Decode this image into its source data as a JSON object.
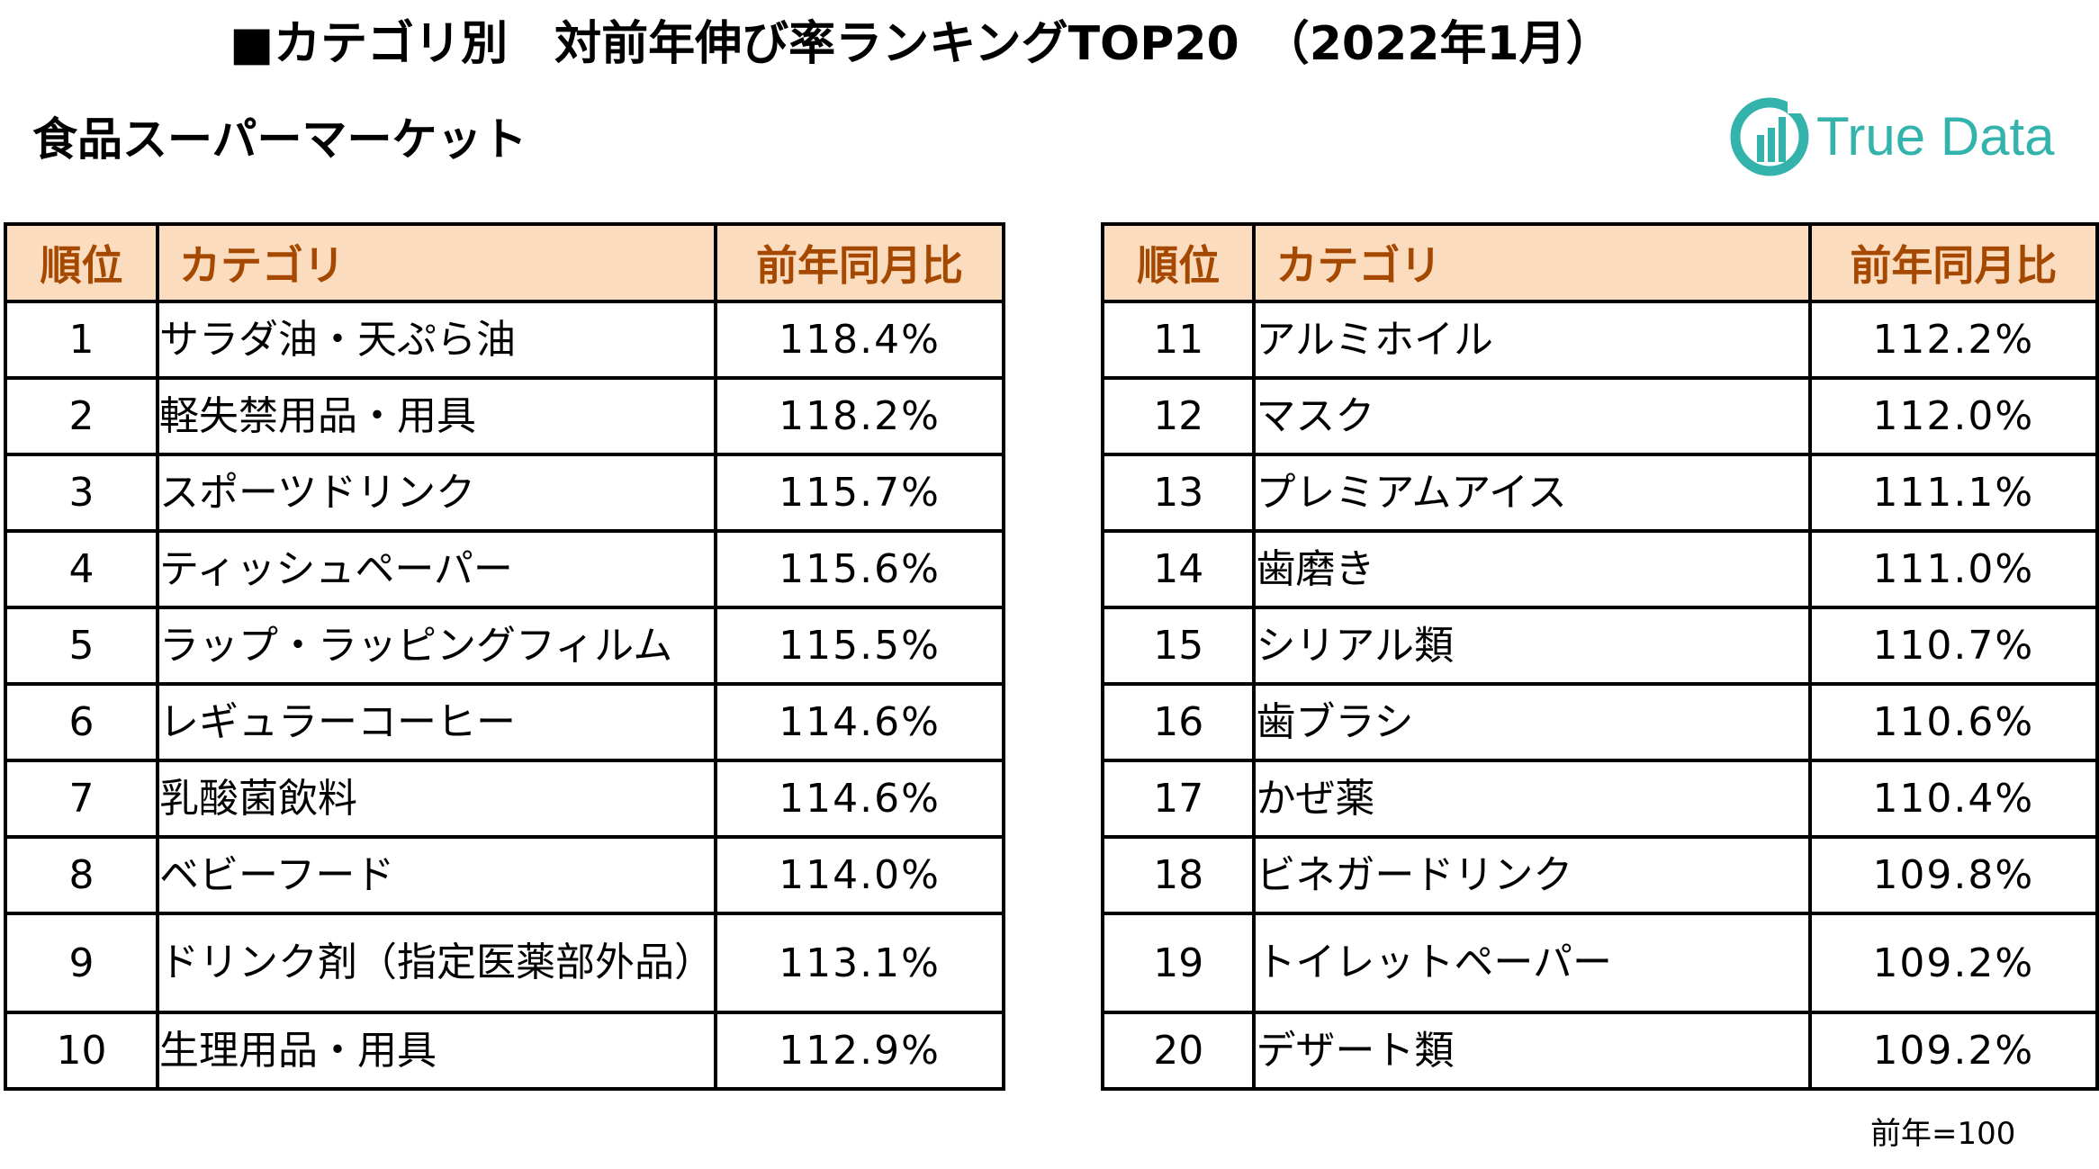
{
  "header": {
    "title": "■カテゴリ別　対前年伸び率ランキングTOP20　（2022年1月）",
    "subtitle": "食品スーパーマーケット"
  },
  "logo": {
    "text": "True Data",
    "icon": "truedata-logo-icon",
    "color": "#34b3ad"
  },
  "table": {
    "columns": [
      "順位",
      "カテゴリ",
      "前年同月比"
    ],
    "header_color": "#fbdcbf",
    "header_text_color": "#a54800",
    "left_rows": [
      {
        "rank": "1",
        "category": "サラダ油・天ぷら油",
        "value": "118.4%"
      },
      {
        "rank": "2",
        "category": "軽失禁用品・用具",
        "value": "118.2%"
      },
      {
        "rank": "3",
        "category": "スポーツドリンク",
        "value": "115.7%"
      },
      {
        "rank": "4",
        "category": "ティッシュペーパー",
        "value": "115.6%"
      },
      {
        "rank": "5",
        "category": "ラップ・ラッピングフィルム",
        "value": "115.5%"
      },
      {
        "rank": "6",
        "category": "レギュラーコーヒー",
        "value": "114.6%"
      },
      {
        "rank": "7",
        "category": "乳酸菌飲料",
        "value": "114.6%"
      },
      {
        "rank": "8",
        "category": "ベビーフード",
        "value": "114.0%"
      },
      {
        "rank": "9",
        "category": "ドリンク剤（指定医薬部外品）",
        "value": "113.1%"
      },
      {
        "rank": "10",
        "category": "生理用品・用具",
        "value": "112.9%"
      }
    ],
    "right_rows": [
      {
        "rank": "11",
        "category": "アルミホイル",
        "value": "112.2%"
      },
      {
        "rank": "12",
        "category": "マスク",
        "value": "112.0%"
      },
      {
        "rank": "13",
        "category": "プレミアムアイス",
        "value": "111.1%"
      },
      {
        "rank": "14",
        "category": "歯磨き",
        "value": "111.0%"
      },
      {
        "rank": "15",
        "category": "シリアル類",
        "value": "110.7%"
      },
      {
        "rank": "16",
        "category": "歯ブラシ",
        "value": "110.6%"
      },
      {
        "rank": "17",
        "category": "かぜ薬",
        "value": "110.4%"
      },
      {
        "rank": "18",
        "category": "ビネガードリンク",
        "value": "109.8%"
      },
      {
        "rank": "19",
        "category": "トイレットペーパー",
        "value": "109.2%"
      },
      {
        "rank": "20",
        "category": "デザート類",
        "value": "109.2%"
      }
    ]
  },
  "footnote": "前年=100"
}
